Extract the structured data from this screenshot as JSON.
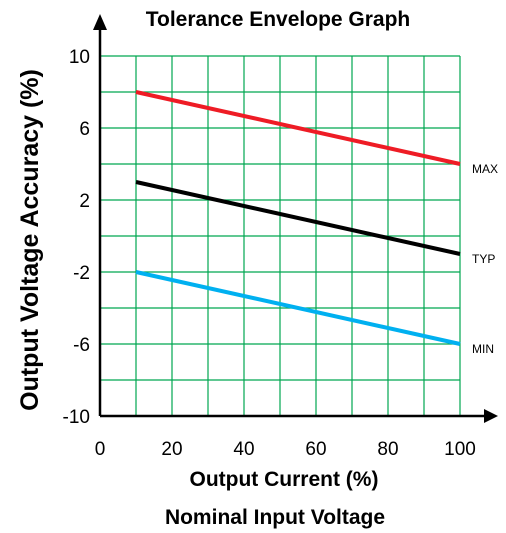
{
  "chart_data": {
    "type": "line",
    "title": "Tolerance Envelope Graph",
    "xlabel": "Output Current (%)",
    "xlabel2": "Nominal Input Voltage",
    "ylabel": "Output Voltage Accuracy (%)",
    "xlim": [
      0,
      100
    ],
    "ylim": [
      -10,
      10
    ],
    "x_ticks": [
      "0",
      "20",
      "40",
      "60",
      "80",
      "100"
    ],
    "y_ticks": [
      "10",
      "6",
      "2",
      "-2",
      "-6",
      "-10"
    ],
    "grid": true,
    "grid_color": "#00a651",
    "series": [
      {
        "name": "MAX",
        "color": "#ee1c25",
        "x": [
          10,
          100
        ],
        "y": [
          8,
          4
        ]
      },
      {
        "name": "TYP",
        "color": "#000000",
        "x": [
          10,
          100
        ],
        "y": [
          3,
          -1
        ]
      },
      {
        "name": "MIN",
        "color": "#00b0f0",
        "x": [
          10,
          100
        ],
        "y": [
          -2,
          -6
        ]
      }
    ]
  }
}
